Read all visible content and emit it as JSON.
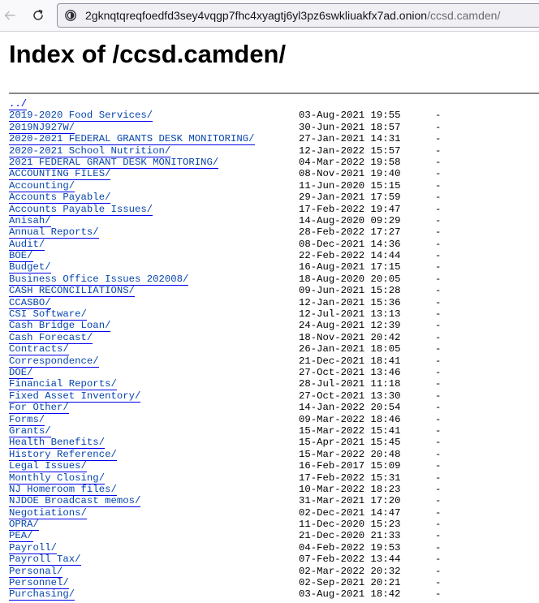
{
  "browser": {
    "url_host": "2gknqtqreqfoedfd3sey4vqgp7fhc4xyagtj6yl3pz6swkliuakfx7ad.onion",
    "url_path": "/ccsd.camden/"
  },
  "page": {
    "title": "Index of /ccsd.camden/",
    "parent_link": "../"
  },
  "entries": [
    {
      "name": "2019-2020 Food Services/",
      "date": "03-Aug-2021 19:55",
      "size": "-"
    },
    {
      "name": "2019NJ927W/",
      "date": "30-Jun-2021 18:57",
      "size": "-"
    },
    {
      "name": "2020-2021 FEDERAL GRANTS DESK MONITORING/",
      "date": "27-Jan-2021 14:31",
      "size": "-"
    },
    {
      "name": "2020-2021 School Nutrition/",
      "date": "12-Jan-2022 15:57",
      "size": "-"
    },
    {
      "name": "2021 FEDERAL GRANT DESK MONITORING/",
      "date": "04-Mar-2022 19:58",
      "size": "-"
    },
    {
      "name": "ACCOUNTING FILES/",
      "date": "08-Nov-2021 19:40",
      "size": "-"
    },
    {
      "name": "Accounting/",
      "date": "11-Jun-2020 15:15",
      "size": "-"
    },
    {
      "name": "Accounts Payable/",
      "date": "29-Jan-2021 17:59",
      "size": "-"
    },
    {
      "name": "Accounts Payable Issues/",
      "date": "17-Feb-2022 19:47",
      "size": "-"
    },
    {
      "name": "Anisah/",
      "date": "14-Aug-2020 09:29",
      "size": "-"
    },
    {
      "name": "Annual Reports/",
      "date": "28-Feb-2022 17:27",
      "size": "-"
    },
    {
      "name": "Audit/",
      "date": "08-Dec-2021 14:36",
      "size": "-"
    },
    {
      "name": "BOE/",
      "date": "22-Feb-2022 14:44",
      "size": "-"
    },
    {
      "name": "Budget/",
      "date": "16-Aug-2021 17:15",
      "size": "-"
    },
    {
      "name": "Business Office Issues 202008/",
      "date": "18-Aug-2020 20:05",
      "size": "-"
    },
    {
      "name": "CASH RECONCILIATIONS/",
      "date": "09-Jun-2021 15:28",
      "size": "-"
    },
    {
      "name": "CCASBO/",
      "date": "12-Jan-2021 15:36",
      "size": "-"
    },
    {
      "name": "CSI Software/",
      "date": "12-Jul-2021 13:13",
      "size": "-"
    },
    {
      "name": "Cash Bridge Loan/",
      "date": "24-Aug-2021 12:39",
      "size": "-"
    },
    {
      "name": "Cash Forecast/",
      "date": "18-Nov-2021 20:42",
      "size": "-"
    },
    {
      "name": "Contracts/",
      "date": "26-Jan-2021 18:05",
      "size": "-"
    },
    {
      "name": "Correspondence/",
      "date": "21-Dec-2021 18:41",
      "size": "-"
    },
    {
      "name": "DOE/",
      "date": "27-Oct-2021 13:46",
      "size": "-"
    },
    {
      "name": "Financial Reports/",
      "date": "28-Jul-2021 11:18",
      "size": "-"
    },
    {
      "name": "Fixed Asset Inventory/",
      "date": "27-Oct-2021 13:30",
      "size": "-"
    },
    {
      "name": "For Other/",
      "date": "14-Jan-2022 20:54",
      "size": "-"
    },
    {
      "name": "Forms/",
      "date": "09-Mar-2022 18:46",
      "size": "-"
    },
    {
      "name": "Grants/",
      "date": "15-Mar-2022 15:41",
      "size": "-"
    },
    {
      "name": "Health Benefits/",
      "date": "15-Apr-2021 15:45",
      "size": "-"
    },
    {
      "name": "History Reference/",
      "date": "15-Mar-2022 20:48",
      "size": "-"
    },
    {
      "name": "Legal Issues/",
      "date": "16-Feb-2017 15:09",
      "size": "-"
    },
    {
      "name": "Monthly Closing/",
      "date": "17-Feb-2022 15:31",
      "size": "-"
    },
    {
      "name": "NJ Homeroom files/",
      "date": "10-Mar-2022 18:23",
      "size": "-"
    },
    {
      "name": "NJDOE Broadcast memos/",
      "date": "31-Mar-2021 17:20",
      "size": "-"
    },
    {
      "name": "Negotiations/",
      "date": "02-Dec-2021 14:47",
      "size": "-"
    },
    {
      "name": "OPRA/",
      "date": "11-Dec-2020 15:23",
      "size": "-"
    },
    {
      "name": "PEA/",
      "date": "21-Dec-2020 21:33",
      "size": "-"
    },
    {
      "name": "Payroll/",
      "date": "04-Feb-2022 19:53",
      "size": "-"
    },
    {
      "name": "Payroll Tax/",
      "date": "07-Feb-2022 13:44",
      "size": "-"
    },
    {
      "name": "Personal/",
      "date": "02-Mar-2022 20:32",
      "size": "-"
    },
    {
      "name": "Personnel/",
      "date": "02-Sep-2021 20:21",
      "size": "-"
    },
    {
      "name": "Purchasing/",
      "date": "03-Aug-2021 18:42",
      "size": "-"
    }
  ]
}
